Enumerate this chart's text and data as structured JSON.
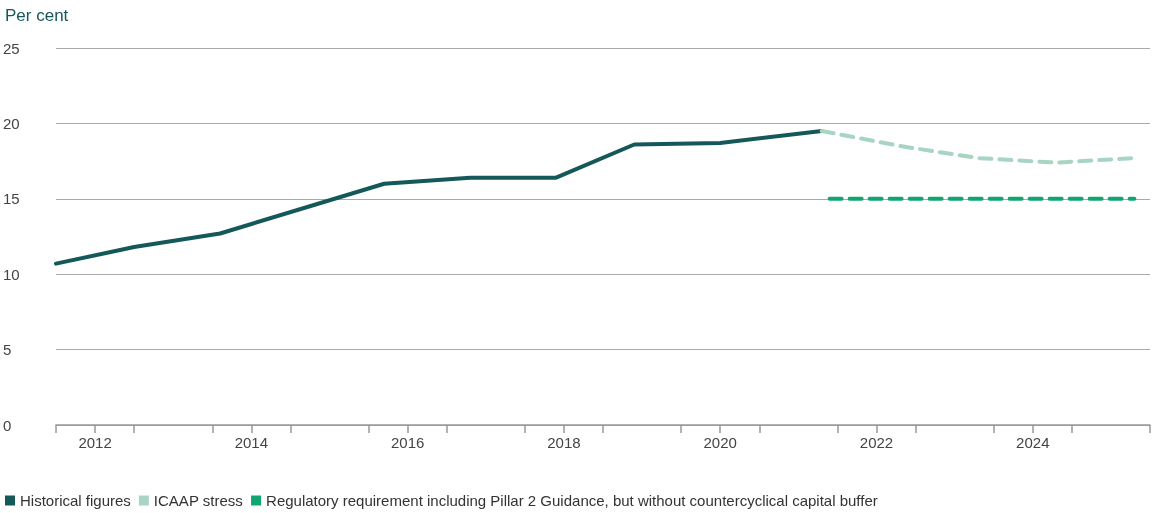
{
  "chart_data": {
    "type": "line",
    "ylabel": "Per cent",
    "xlim": [
      2012,
      2026
    ],
    "xticks": [
      {
        "value": 2012,
        "label": null
      },
      {
        "value": 2012.5,
        "label": "2012"
      },
      {
        "value": 2013,
        "label": null
      },
      {
        "value": 2014,
        "label": null
      },
      {
        "value": 2014.5,
        "label": "2014"
      },
      {
        "value": 2015,
        "label": null
      },
      {
        "value": 2016,
        "label": null
      },
      {
        "value": 2016.5,
        "label": "2016"
      },
      {
        "value": 2017,
        "label": null
      },
      {
        "value": 2018,
        "label": null
      },
      {
        "value": 2018.5,
        "label": "2018"
      },
      {
        "value": 2019,
        "label": null
      },
      {
        "value": 2020,
        "label": null
      },
      {
        "value": 2020.5,
        "label": "2020"
      },
      {
        "value": 2021,
        "label": null
      },
      {
        "value": 2022,
        "label": null
      },
      {
        "value": 2022.5,
        "label": "2022"
      },
      {
        "value": 2023,
        "label": null
      },
      {
        "value": 2024,
        "label": null
      },
      {
        "value": 2024.5,
        "label": "2024"
      },
      {
        "value": 2025,
        "label": null
      },
      {
        "value": 2026,
        "label": null
      }
    ],
    "ylim": [
      0,
      25
    ],
    "yticks": [
      0,
      5,
      10,
      15,
      20,
      25
    ],
    "grid": "y",
    "legend": "bottom left",
    "marker": "none",
    "series": [
      {
        "name": "Historical figures",
        "color": "#14585a",
        "line_style": "solid",
        "x": [
          2012.0,
          2013.0,
          2014.1,
          2016.2,
          2017.3,
          2018.4,
          2019.4,
          2020.5,
          2021.8
        ],
        "values": [
          10.7,
          11.8,
          12.7,
          16.0,
          16.4,
          16.4,
          18.6,
          18.7,
          19.5
        ]
      },
      {
        "name": "ICAAP stress",
        "color": "#a8d5c2",
        "line_style": "dashed",
        "x": [
          2021.8,
          2022.8,
          2023.8,
          2024.8,
          2025.8
        ],
        "values": [
          19.5,
          18.5,
          17.7,
          17.4,
          17.7
        ]
      },
      {
        "name": "Regulatory requirement including Pillar 2 Guidance, but without countercyclical capital buffer",
        "color": "#10a670",
        "line_style": "dashed",
        "x": [
          2021.9,
          2025.8
        ],
        "values": [
          15.0,
          15.0
        ]
      }
    ]
  }
}
